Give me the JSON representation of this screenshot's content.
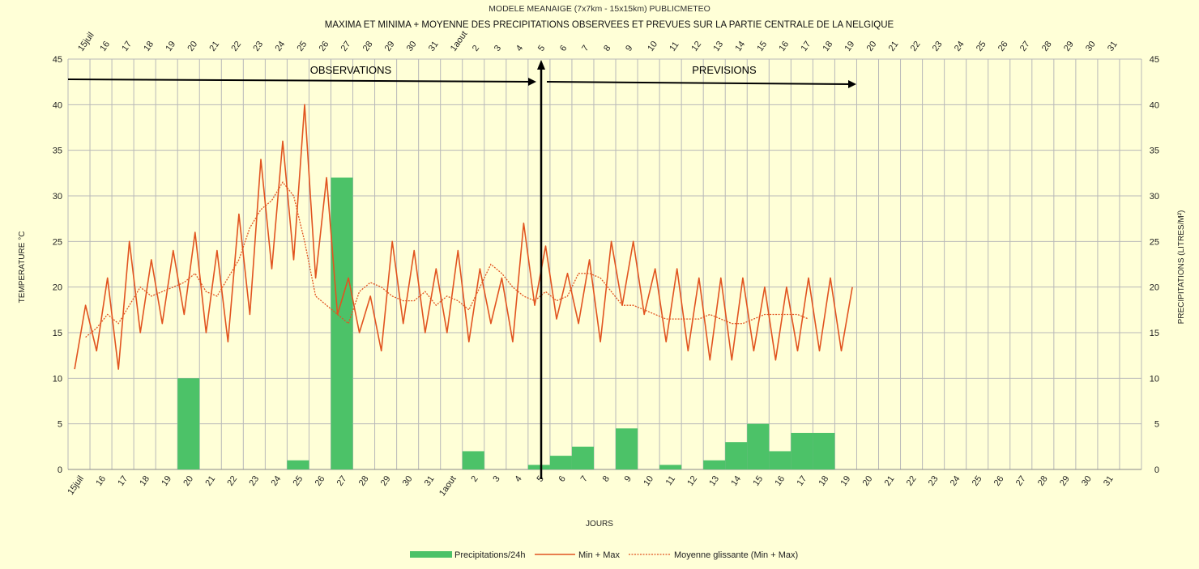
{
  "chart_data": {
    "type": "bar+line",
    "title": "MAXIMA ET MINIMA + MOYENNE DES PRECIPITATIONS OBSERVEES ET PREVUES SUR LA PARTIE CENTRALE DE LA NELGIQUE",
    "subtitle": "MODELE MEANAIGE (7x7km - 15x15km) PUBLICMETEO",
    "xlabel": "JOURS",
    "ylabel_left": "TEMPERATURE °C",
    "ylabel_right": "PRECIPITATIONS (LITRES/M²)",
    "ylim": [
      0,
      45
    ],
    "yticks": [
      0,
      5,
      10,
      15,
      20,
      25,
      30,
      35,
      40,
      45
    ],
    "grid": true,
    "legend_position": "bottom",
    "day_labels": [
      "15juil",
      "16",
      "17",
      "18",
      "19",
      "20",
      "21",
      "22",
      "23",
      "24",
      "25",
      "26",
      "27",
      "28",
      "29",
      "30",
      "31",
      "1aout",
      "2",
      "3",
      "4",
      "5",
      "6",
      "7",
      "8",
      "9",
      "10",
      "11",
      "12",
      "13",
      "14",
      "15",
      "16",
      "17",
      "18",
      "19",
      "20",
      "21",
      "22",
      "23",
      "24",
      "25",
      "26",
      "27",
      "28",
      "29",
      "30",
      "31"
    ],
    "annotations": {
      "observations": "OBSERVATIONS",
      "previsions": "PREVISIONS"
    },
    "colors": {
      "precip": "#4cc268",
      "temp": "#e15420",
      "avg": "#e15420",
      "grid": "#b8b8b8",
      "background": "#ffffd7"
    },
    "series": [
      {
        "name": "Precipitations/24h",
        "type": "bar",
        "values": [
          0,
          0,
          0,
          0,
          0,
          10,
          0,
          0,
          0,
          0,
          1,
          0,
          32,
          0,
          0,
          0,
          0,
          0,
          2,
          0,
          0,
          0.5,
          1.5,
          2.5,
          0,
          4.5,
          0,
          0.5,
          0,
          1,
          3,
          5,
          2,
          4,
          4,
          0,
          0,
          0,
          0,
          0,
          0,
          0,
          0,
          0,
          0,
          0,
          0,
          0
        ]
      },
      {
        "name": "Min + Max",
        "type": "line",
        "values": [
          11,
          18,
          13,
          21,
          11,
          25,
          15,
          23,
          16,
          24,
          17,
          26,
          15,
          24,
          14,
          28,
          17,
          34,
          22,
          36,
          23,
          40,
          21,
          32,
          17,
          21,
          15,
          19,
          13,
          25,
          16,
          24,
          15,
          22,
          15,
          24,
          14,
          22,
          16,
          21,
          14,
          27,
          18,
          24.5,
          16.5,
          21.5,
          16,
          23,
          14,
          25,
          18,
          25,
          17,
          22,
          14,
          22,
          13,
          21,
          12,
          21,
          12,
          21,
          13,
          20,
          12,
          20,
          13,
          21,
          13,
          21,
          13,
          20
        ]
      },
      {
        "name": "Moyenne glissante (Min + Max)",
        "type": "line",
        "values": [
          14.5,
          15.5,
          17,
          16,
          18,
          20,
          19,
          19.5,
          20,
          20.5,
          21.5,
          19.5,
          19,
          21,
          23,
          26.5,
          28.5,
          29.5,
          31.5,
          30,
          25,
          19,
          18,
          17,
          16,
          19.5,
          20.5,
          20,
          19,
          18.5,
          18.5,
          19.5,
          18,
          19,
          18.5,
          17.5,
          20,
          22.5,
          21.5,
          20,
          19,
          18.5,
          19.5,
          18.5,
          19,
          21.5,
          21.5,
          21,
          19.5,
          18,
          18,
          17.5,
          17,
          16.5,
          16.5,
          16.5,
          16.5,
          17,
          16.5,
          16,
          16,
          16.5,
          17,
          17,
          17,
          17,
          16.5
        ]
      }
    ]
  }
}
